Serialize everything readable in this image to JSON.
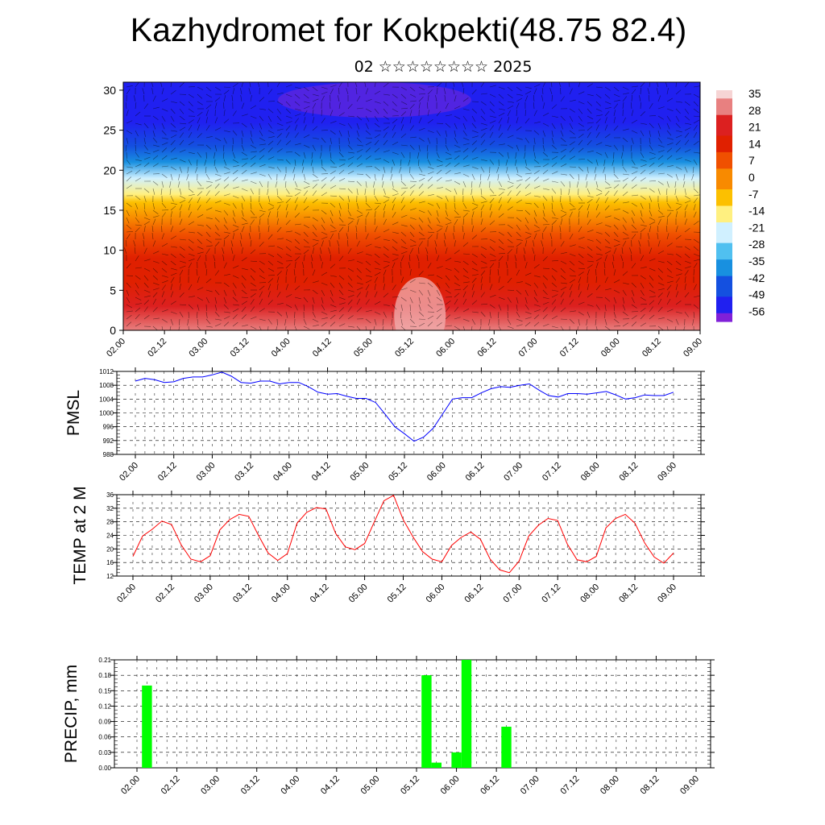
{
  "header": {
    "title": "Kazhydromet for Kokpekti(48.75 82.4)",
    "subtitle": "02 ☆☆☆☆☆☆☆☆ 2025"
  },
  "colors": {
    "pmsl_line": "#0000ff",
    "temp_line": "#ff0000",
    "precip_bar": "#00ff00",
    "frame": "#000000"
  },
  "chart_data": [
    {
      "id": "wind_temp_section",
      "type": "heatmap",
      "title": "",
      "xlabel": "",
      "ylabel": "",
      "x_ticks": [
        "02.00",
        "02.12",
        "03.00",
        "03.12",
        "04.00",
        "04.12",
        "05.00",
        "05.12",
        "06.00",
        "06.12",
        "07.00",
        "07.12",
        "08.00",
        "08.12",
        "09.00"
      ],
      "y_ticks": [
        0,
        5,
        10,
        15,
        20,
        25,
        30
      ],
      "ylim": [
        0,
        31
      ],
      "colorbar_labels": [
        "35",
        "28",
        "21",
        "14",
        "7",
        "0",
        "-7",
        "-14",
        "-21",
        "-28",
        "-35",
        "-42",
        "-49",
        "-56"
      ],
      "colorbar_colors": [
        "#f6d4d4",
        "#e88080",
        "#dc2020",
        "#e02000",
        "#f05000",
        "#f88a00",
        "#fcc000",
        "#fff080",
        "#d0f0ff",
        "#50c0f0",
        "#1890e0",
        "#1450e0",
        "#2020f0",
        "#8020d8"
      ],
      "colorbar_range": [
        -63,
        42
      ],
      "profile_levels": [
        0,
        3,
        6,
        9,
        12,
        14,
        16,
        17,
        19,
        21,
        23,
        26,
        28,
        31
      ],
      "profile_temps": [
        30,
        26,
        21,
        15,
        10,
        4,
        -5,
        -13,
        -25,
        -35,
        -45,
        -53,
        -56,
        -55
      ],
      "overlay": "wind barbs"
    },
    {
      "id": "pmsl",
      "type": "line",
      "title": "",
      "ylabel": "PMSL",
      "xlabel": "",
      "x_ticks": [
        "02.00",
        "02.12",
        "03.00",
        "03.12",
        "04.00",
        "04.12",
        "05.00",
        "05.12",
        "06.00",
        "06.12",
        "07.00",
        "07.12",
        "08.00",
        "08.12",
        "09.00"
      ],
      "y_ticks": [
        988,
        992,
        996,
        1000,
        1004,
        1008,
        1012
      ],
      "ylim": [
        988,
        1012
      ],
      "series": [
        {
          "values": [
            1009.2,
            1010.0,
            1009.6,
            1008.8,
            1009.0,
            1010.0,
            1010.4,
            1010.4,
            1011.0,
            1011.8,
            1010.6,
            1008.8,
            1008.6,
            1009.2,
            1009.2,
            1008.4,
            1008.8,
            1008.8,
            1007.6,
            1006.0,
            1005.4,
            1005.6,
            1004.8,
            1004.2,
            1004.2,
            1003.0,
            999.6,
            996.0,
            994.0,
            991.8,
            993.0,
            995.6,
            999.8,
            1004.0,
            1004.4,
            1004.4,
            1005.8,
            1007.0,
            1007.6,
            1007.4,
            1008.0,
            1008.4,
            1006.6,
            1005.0,
            1004.6,
            1005.6,
            1005.6,
            1005.4,
            1005.8,
            1006.2,
            1005.2,
            1004.0,
            1004.4,
            1005.2,
            1005.0,
            1005.0,
            1006.0
          ]
        }
      ]
    },
    {
      "id": "temp_2m",
      "type": "line",
      "title": "",
      "ylabel": "TEMP at 2 M",
      "xlabel": "",
      "x_ticks": [
        "02.00",
        "02.12",
        "03.00",
        "03.12",
        "04.00",
        "04.12",
        "05.00",
        "05.12",
        "06.00",
        "06.12",
        "07.00",
        "07.12",
        "08.00",
        "08.12",
        "09.00"
      ],
      "y_ticks": [
        12,
        16,
        20,
        24,
        28,
        32,
        36
      ],
      "ylim": [
        12,
        36
      ],
      "series": [
        {
          "values": [
            17.8,
            23.8,
            25.8,
            28.2,
            27.2,
            21.2,
            17.0,
            16.2,
            18.0,
            25.6,
            28.6,
            30.2,
            29.6,
            24.0,
            18.8,
            16.6,
            18.6,
            27.6,
            30.8,
            32.2,
            31.8,
            24.6,
            20.6,
            19.8,
            21.6,
            28.0,
            34.2,
            35.8,
            28.6,
            23.6,
            19.2,
            17.0,
            16.2,
            21.0,
            23.4,
            25.0,
            22.8,
            17.0,
            13.8,
            13.0,
            16.4,
            23.8,
            27.0,
            29.0,
            28.4,
            21.4,
            16.8,
            16.2,
            17.8,
            26.2,
            29.0,
            30.2,
            27.6,
            21.8,
            17.6,
            15.8,
            18.8
          ]
        }
      ]
    },
    {
      "id": "precip",
      "type": "bar",
      "title": "",
      "ylabel": "PRECIP, mm",
      "xlabel": "",
      "x_ticks": [
        "02.00",
        "02.12",
        "03.00",
        "03.12",
        "04.00",
        "04.12",
        "05.00",
        "05.12",
        "06.00",
        "06.12",
        "07.00",
        "07.12",
        "08.00",
        "08.12",
        "09.00"
      ],
      "y_ticks": [
        "0.00",
        "0.03",
        "0.06",
        "0.09",
        "0.12",
        "0.15",
        "0.18",
        "0.21"
      ],
      "ylim": [
        0,
        0.21
      ],
      "bars": [
        {
          "x_index": 1,
          "value": 0.16
        },
        {
          "x_index": 29,
          "value": 0.18
        },
        {
          "x_index": 30,
          "value": 0.01
        },
        {
          "x_index": 32,
          "value": 0.03
        },
        {
          "x_index": 33,
          "value": 0.21
        },
        {
          "x_index": 37,
          "value": 0.08
        }
      ],
      "slots": 57
    }
  ]
}
